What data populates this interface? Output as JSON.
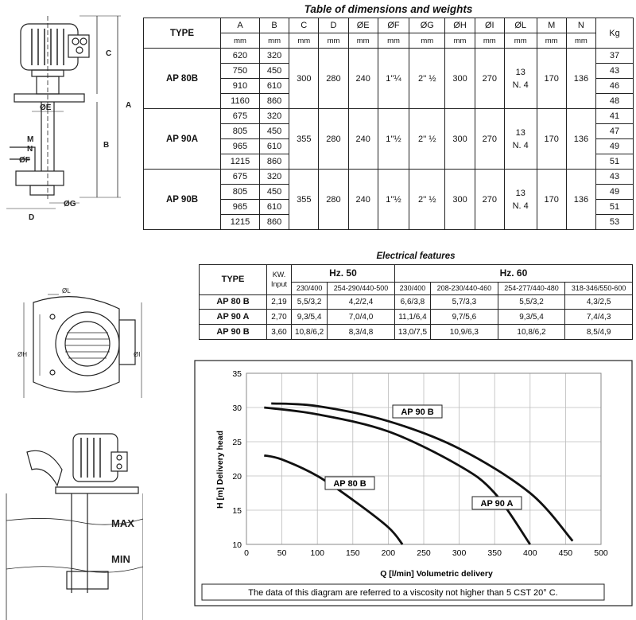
{
  "dimensions_title": "Table of dimensions and weights",
  "dimensions_table": {
    "headers": [
      "TYPE",
      "A",
      "B",
      "C",
      "D",
      "ØE",
      "ØF",
      "ØG",
      "ØH",
      "ØI",
      "ØL",
      "M",
      "N",
      "Kg"
    ],
    "units": [
      "mm",
      "mm",
      "mm",
      "mm",
      "mm",
      "mm",
      "mm",
      "mm",
      "mm",
      "mm",
      "mm",
      "mm"
    ],
    "groups": [
      {
        "type": "AP 80B",
        "rows": [
          [
            "620",
            "320",
            "37"
          ],
          [
            "750",
            "450",
            "43"
          ],
          [
            "910",
            "610",
            "46"
          ],
          [
            "1160",
            "860",
            "48"
          ]
        ],
        "C": "300",
        "D": "280",
        "E": "240",
        "F": "1''¼",
        "G": "2'' ½",
        "H": "300",
        "I": "270",
        "L1": "13",
        "L2": "N. 4",
        "M": "170",
        "N": "136"
      },
      {
        "type": "AP 90A",
        "rows": [
          [
            "675",
            "320",
            "41"
          ],
          [
            "805",
            "450",
            "47"
          ],
          [
            "965",
            "610",
            "49"
          ],
          [
            "1215",
            "860",
            "51"
          ]
        ],
        "C": "355",
        "D": "280",
        "E": "240",
        "F": "1''½",
        "G": "2'' ½",
        "H": "300",
        "I": "270",
        "L1": "13",
        "L2": "N. 4",
        "M": "170",
        "N": "136"
      },
      {
        "type": "AP 90B",
        "rows": [
          [
            "675",
            "320",
            "43"
          ],
          [
            "805",
            "450",
            "49"
          ],
          [
            "965",
            "610",
            "51"
          ],
          [
            "1215",
            "860",
            "53"
          ]
        ],
        "C": "355",
        "D": "280",
        "E": "240",
        "F": "1''½",
        "G": "2'' ½",
        "H": "300",
        "I": "270",
        "L1": "13",
        "L2": "N. 4",
        "M": "170",
        "N": "136"
      }
    ]
  },
  "electrical_title": "Electrical features",
  "electrical_table": {
    "type_header": "TYPE",
    "kw_header_1": "KW.",
    "kw_header_2": "Input",
    "hz50": "Hz. 50",
    "hz60": "Hz. 60",
    "voltages": [
      "230/400",
      "254-290/440-500",
      "230/400",
      "208-230/440-460",
      "254-277/440-480",
      "318-346/550-600"
    ],
    "rows": [
      {
        "type": "AP 80 B",
        "kw": "2,19",
        "values": [
          "5,5/3,2",
          "4,2/2,4",
          "6,6/3,8",
          "5,7/3,3",
          "5,5/3,2",
          "4,3/2,5"
        ]
      },
      {
        "type": "AP 90 A",
        "kw": "2,70",
        "values": [
          "9,3/5,4",
          "7,0/4,0",
          "11,1/6,4",
          "9,7/5,6",
          "9,3/5,4",
          "7,4/4,3"
        ]
      },
      {
        "type": "AP 90 B",
        "kw": "3,60",
        "values": [
          "10,8/6,2",
          "8,3/4,8",
          "13,0/7,5",
          "10,9/6,3",
          "10,8/6,2",
          "8,5/4,9"
        ]
      }
    ]
  },
  "drawing_labels": {
    "side": [
      "C",
      "A",
      "B",
      "ØE",
      "M",
      "N",
      "ØF",
      "ØG",
      "D"
    ],
    "top": [
      "ØL",
      "ØH",
      "ØI"
    ],
    "tank": [
      "MAX",
      "MIN"
    ]
  },
  "chart_data": {
    "type": "line",
    "xlabel": "Q [l/min] Volumetric delivery",
    "ylabel": "H [m] Delivery head",
    "xlim": [
      0,
      500
    ],
    "ylim": [
      10,
      35
    ],
    "xticks": [
      0,
      50,
      100,
      150,
      200,
      250,
      300,
      350,
      400,
      450,
      500
    ],
    "yticks": [
      10,
      15,
      20,
      25,
      30,
      35
    ],
    "grid": true,
    "note": "The data of this diagram are referred to a viscosity not higher than 5 CST 20° C.",
    "series": [
      {
        "name": "AP 80 B",
        "x": [
          25,
          50,
          100,
          150,
          200,
          220
        ],
        "y": [
          23,
          22.4,
          20,
          16.5,
          12.5,
          10
        ]
      },
      {
        "name": "AP 90 A",
        "x": [
          25,
          100,
          200,
          300,
          350,
          400
        ],
        "y": [
          30,
          29,
          26.5,
          21.5,
          17.5,
          10
        ]
      },
      {
        "name": "AP 90 B",
        "x": [
          35,
          100,
          200,
          300,
          400,
          460
        ],
        "y": [
          30.6,
          30.2,
          28,
          24,
          17.5,
          10.5
        ]
      }
    ]
  }
}
